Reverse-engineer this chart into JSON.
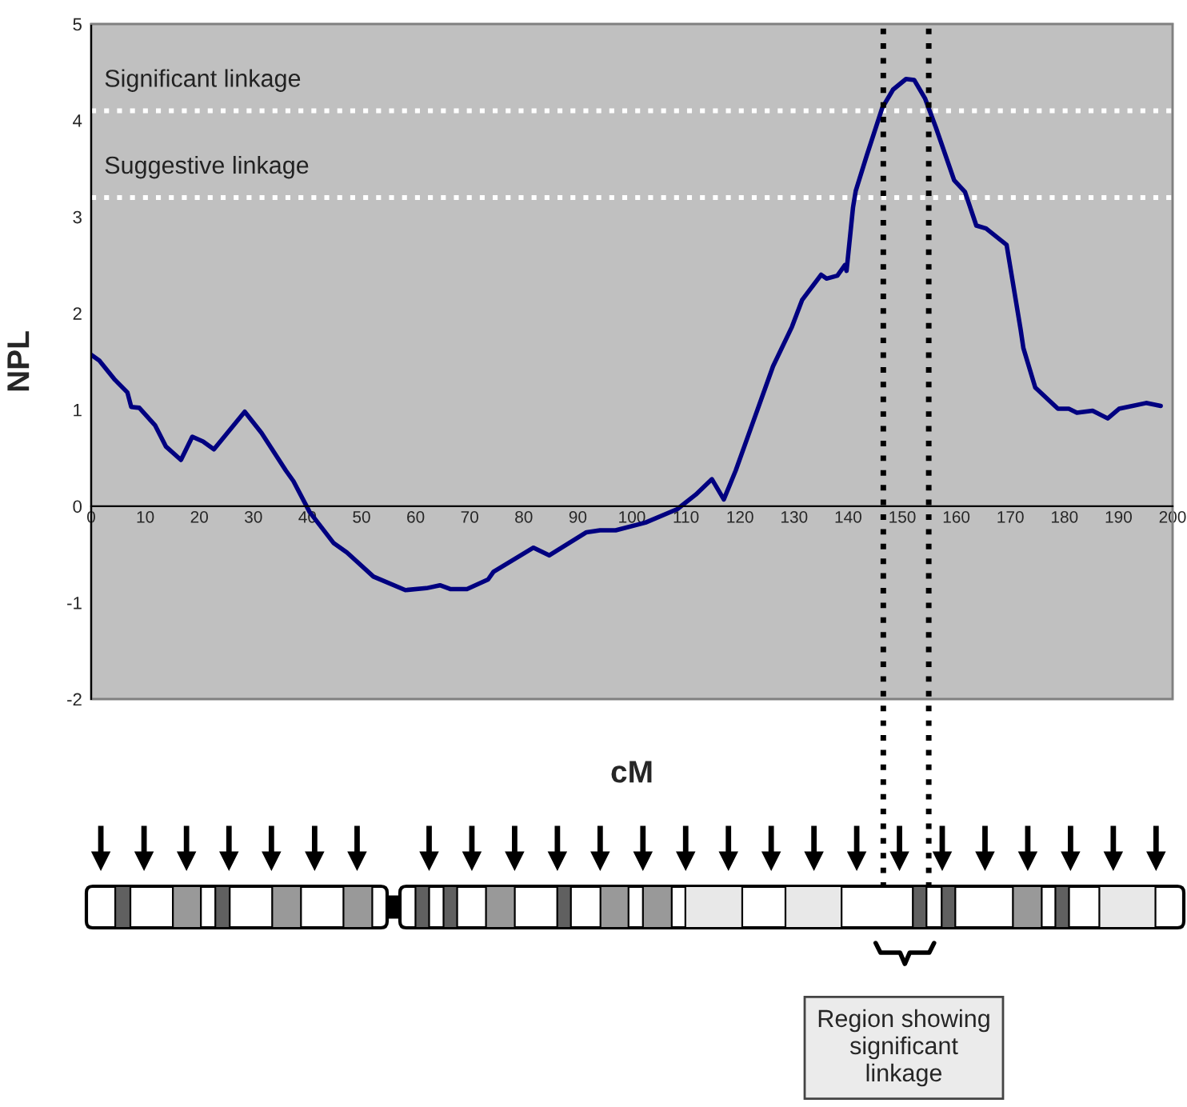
{
  "chart_data": {
    "type": "line",
    "xlabel": "cM",
    "ylabel": "NPL",
    "xlim": [
      0,
      200
    ],
    "xticks": [
      0,
      10,
      20,
      30,
      40,
      50,
      60,
      70,
      80,
      90,
      100,
      110,
      120,
      130,
      140,
      150,
      160,
      170,
      180,
      190,
      200
    ],
    "ylim": [
      -2,
      5
    ],
    "yticks": [
      -2,
      -1,
      0,
      1,
      2,
      3,
      4,
      5
    ],
    "grid": false,
    "marker": "none",
    "line_style": "solid",
    "series": [
      {
        "color": "#000080",
        "x": [
          0,
          1.5,
          4.4,
          6.7,
          7.4,
          8.9,
          11.8,
          13.8,
          16.6,
          18.7,
          20.7,
          22.7,
          28.4,
          31.5,
          36,
          37.4,
          40.4,
          44.8,
          47.3,
          52.2,
          58.1,
          62,
          64.5,
          66.5,
          69.5,
          73.4,
          74.4,
          81.8,
          84.7,
          91.6,
          94.1,
          97,
          102.5,
          108.4,
          111.8,
          114.8,
          117,
          119.2,
          122.2,
          126.1,
          129.6,
          131.5,
          135,
          136,
          138,
          139.4,
          139.7,
          140.9,
          141.4,
          143.4,
          146.3,
          148.3,
          150.7,
          152.2,
          154.2,
          156.2,
          159.6,
          161.6,
          163.7,
          165.5,
          169.3,
          171.9,
          172.4,
          174.6,
          178.8,
          180.8,
          182.3,
          185.2,
          188,
          190.1,
          195.1,
          197.8
        ],
        "values": [
          1.57,
          1.51,
          1.31,
          1.18,
          1.03,
          1.02,
          0.84,
          0.62,
          0.48,
          0.72,
          0.67,
          0.59,
          0.98,
          0.76,
          0.37,
          0.26,
          -0.06,
          -0.38,
          -0.48,
          -0.73,
          -0.87,
          -0.85,
          -0.82,
          -0.86,
          -0.86,
          -0.76,
          -0.68,
          -0.43,
          -0.51,
          -0.27,
          -0.25,
          -0.25,
          -0.17,
          -0.03,
          0.12,
          0.28,
          0.07,
          0.37,
          0.84,
          1.45,
          1.86,
          2.14,
          2.4,
          2.36,
          2.39,
          2.5,
          2.44,
          3.1,
          3.27,
          3.63,
          4.13,
          4.32,
          4.43,
          4.42,
          4.23,
          3.93,
          3.38,
          3.26,
          2.91,
          2.88,
          2.71,
          1.83,
          1.64,
          1.23,
          1.01,
          1.01,
          0.97,
          0.99,
          0.91,
          1.01,
          1.07,
          1.04
        ]
      }
    ],
    "ref_lines": [
      {
        "axis": "y",
        "value": 4.1,
        "label": "Significant linkage",
        "color": "#ffffff",
        "line_style": "dotted"
      },
      {
        "axis": "y",
        "value": 3.2,
        "label": "Suggestive linkage",
        "color": "#ffffff",
        "line_style": "dotted"
      },
      {
        "axis": "x",
        "value": 146.5,
        "color": "#000000",
        "line_style": "dotted"
      },
      {
        "axis": "x",
        "value": 154.9,
        "color": "#000000",
        "line_style": "dotted"
      }
    ],
    "annotations": [
      "Region showing\nsignificant\nlinkage"
    ]
  }
}
